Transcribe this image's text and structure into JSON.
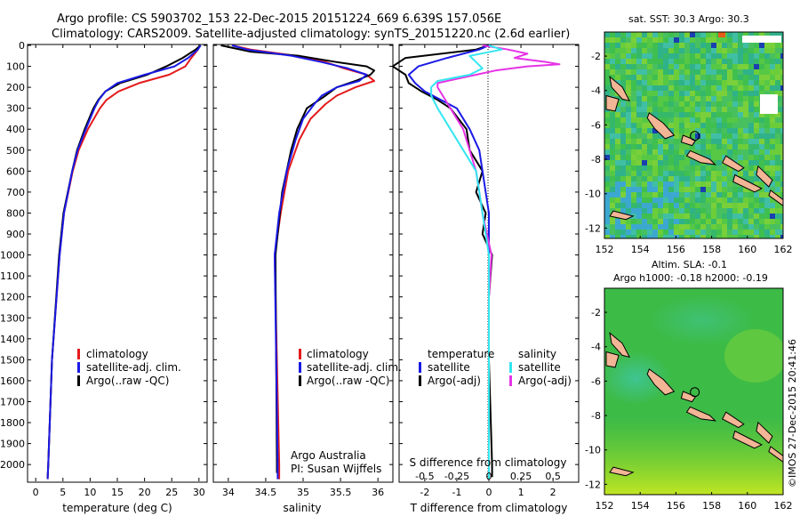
{
  "header": {
    "line1": "Argo profile: CS 5903702_153 22-Dec-2015 20151224_669 6.639S 157.056E",
    "line2": "Climatology: CARS2009. Satellite-adjusted climatology: synTS_20151220.nc (2.6d earlier)"
  },
  "colors": {
    "climatology": "#e41a1c",
    "satellite": "#1a1ae6",
    "argo": "#000000",
    "sal_satellite": "#33e6f0",
    "sal_argo": "#e633e6"
  },
  "depth_ticks": [
    "0",
    "100",
    "200",
    "300",
    "400",
    "500",
    "600",
    "700",
    "800",
    "900",
    "1000",
    "1100",
    "1200",
    "1300",
    "1400",
    "1500",
    "1600",
    "1700",
    "1800",
    "1900",
    "2000"
  ],
  "chart_data": [
    {
      "type": "line",
      "xlabel": "temperature (deg C)",
      "xticks": [
        "0",
        "5",
        "10",
        "15",
        "20",
        "25",
        "30"
      ],
      "xlim": [
        -1.5,
        31.5
      ],
      "ylim": [
        2080,
        0
      ],
      "legend": [
        "climatology",
        "satellite-adj. clim.",
        "Argo(..raw -QC)"
      ],
      "series": [
        {
          "name": "climatology",
          "depth": [
            0,
            20,
            60,
            100,
            140,
            180,
            220,
            260,
            300,
            400,
            500,
            600,
            800,
            1000,
            1500,
            2000,
            2070
          ],
          "values": [
            30.2,
            29.8,
            28.6,
            27.5,
            24.5,
            19.0,
            15.2,
            13.0,
            11.8,
            9.6,
            7.9,
            6.8,
            5.2,
            4.4,
            3.0,
            2.3,
            2.2
          ]
        },
        {
          "name": "satellite-adj. clim.",
          "depth": [
            0,
            20,
            60,
            100,
            140,
            180,
            220,
            260,
            300,
            400,
            500,
            600,
            800,
            1000,
            1500,
            2000,
            2070
          ],
          "values": [
            30.3,
            29.8,
            28.0,
            25.5,
            20.0,
            15.0,
            12.8,
            11.6,
            10.8,
            9.2,
            7.7,
            6.7,
            5.2,
            4.4,
            3.0,
            2.3,
            2.2
          ]
        },
        {
          "name": "Argo(..raw -QC)",
          "depth": [
            0,
            20,
            60,
            100,
            140,
            180,
            220,
            260,
            300,
            400,
            500,
            600,
            800,
            1000,
            1500,
            2000,
            2060
          ],
          "values": [
            30.3,
            29.4,
            27.0,
            24.0,
            20.5,
            15.5,
            12.8,
            11.5,
            10.6,
            9.0,
            7.6,
            6.7,
            5.1,
            4.3,
            3.0,
            2.3,
            2.2
          ]
        }
      ]
    },
    {
      "type": "line",
      "xlabel": "salinity",
      "xticks": [
        "34",
        "34.5",
        "35",
        "35.5",
        "36"
      ],
      "xlim": [
        33.8,
        36.2
      ],
      "ylim": [
        2080,
        0
      ],
      "legend": [
        "climatology",
        "satellite-adj. clim.",
        "Argo(..raw -QC)"
      ],
      "credit": [
        "Argo Australia",
        "PI: Susan Wijffels"
      ],
      "series": [
        {
          "name": "climatology",
          "depth": [
            0,
            20,
            50,
            80,
            110,
            140,
            170,
            200,
            240,
            280,
            350,
            450,
            600,
            800,
            1000,
            1500,
            2000,
            2070
          ],
          "values": [
            34.05,
            34.3,
            34.9,
            35.3,
            35.55,
            35.85,
            35.95,
            35.7,
            35.45,
            35.3,
            35.1,
            34.95,
            34.8,
            34.7,
            34.62,
            34.65,
            34.68,
            34.68
          ]
        },
        {
          "name": "satellite-adj. clim.",
          "depth": [
            0,
            20,
            50,
            80,
            110,
            140,
            170,
            200,
            240,
            280,
            350,
            450,
            600,
            800,
            1000,
            1500,
            2000,
            2070
          ],
          "values": [
            34.05,
            34.25,
            34.85,
            35.25,
            35.6,
            35.85,
            35.75,
            35.45,
            35.25,
            35.15,
            35.0,
            34.9,
            34.78,
            34.68,
            34.62,
            34.64,
            34.66,
            34.66
          ]
        },
        {
          "name": "Argo(..raw -QC)",
          "depth": [
            0,
            30,
            50,
            80,
            100,
            120,
            140,
            170,
            200,
            240,
            300,
            400,
            500,
            700,
            1000,
            1500,
            2000,
            2040
          ],
          "values": [
            33.9,
            34.3,
            34.95,
            35.45,
            35.85,
            35.95,
            35.9,
            35.7,
            35.45,
            35.3,
            35.05,
            34.92,
            34.84,
            34.72,
            34.63,
            34.64,
            34.65,
            34.65
          ]
        }
      ]
    },
    {
      "type": "line",
      "xlabel": "T difference from climatology",
      "xticks": [
        "-2",
        "-1",
        "0",
        "1",
        "2"
      ],
      "top_xlabel": "S difference from climatology",
      "top_xticks": [
        "-0.5",
        "-0.25",
        "0",
        "0.25",
        "0.5"
      ],
      "xlim": [
        -2.8,
        2.8
      ],
      "ylim": [
        2080,
        0
      ],
      "legend_temperature": [
        "temperature",
        "satellite",
        "Argo(-adj)"
      ],
      "legend_salinity": [
        "salinity",
        "satellite",
        "Argo(-adj)"
      ],
      "series": [
        {
          "name": "satellite",
          "variable": "temperature",
          "depth": [
            0,
            20,
            60,
            100,
            140,
            180,
            220,
            260,
            300,
            400,
            500,
            600,
            700,
            800,
            1000,
            1500,
            2000,
            2070
          ],
          "values": [
            0,
            -0.3,
            -1.3,
            -2.2,
            -2.5,
            -2.3,
            -2.0,
            -1.5,
            -1.0,
            -0.6,
            -0.3,
            -0.2,
            -0.1,
            0,
            0,
            0,
            0,
            0
          ]
        },
        {
          "name": "Argo(-adj)",
          "variable": "temperature",
          "depth": [
            0,
            20,
            60,
            100,
            140,
            180,
            220,
            260,
            300,
            400,
            500,
            600,
            700,
            800,
            900,
            1000,
            1200,
            1500,
            2000,
            2060
          ],
          "values": [
            0,
            -0.4,
            -2.6,
            -3.0,
            -2.6,
            -2.5,
            -2.1,
            -1.6,
            -1.2,
            -0.7,
            -0.6,
            -0.2,
            -0.4,
            -0.1,
            -0.2,
            0.1,
            0,
            0,
            0.1,
            0.1
          ]
        },
        {
          "name": "satellite",
          "variable": "salinity",
          "depth": [
            0,
            20,
            50,
            80,
            110,
            140,
            170,
            200,
            240,
            300,
            400,
            600,
            800,
            1000,
            1500,
            2000,
            2070
          ],
          "values": [
            0,
            0.1,
            -0.15,
            -0.1,
            -0.05,
            -0.15,
            -0.4,
            -0.45,
            -0.45,
            -0.4,
            -0.3,
            -0.1,
            -0.05,
            0,
            0,
            0,
            0
          ]
        },
        {
          "name": "Argo(-adj)",
          "variable": "salinity",
          "depth": [
            0,
            20,
            40,
            60,
            80,
            90,
            100,
            120,
            140,
            160,
            180,
            200,
            250,
            300,
            400,
            600,
            800,
            1000,
            1200,
            1500,
            2000,
            2070
          ],
          "values": [
            -0.05,
            0.15,
            0.3,
            0.2,
            0.45,
            0.55,
            0.3,
            0.05,
            -0.1,
            -0.25,
            -0.4,
            -0.4,
            -0.35,
            -0.3,
            -0.2,
            -0.1,
            -0.05,
            0.02,
            0,
            0,
            0,
            0
          ]
        }
      ]
    },
    {
      "type": "heatmap",
      "title": "sat. SST: 30.3 Argo: 30.3",
      "xticks": [
        "152",
        "154",
        "156",
        "158",
        "160",
        "162"
      ],
      "yticks": [
        "-2",
        "-4",
        "-6",
        "-8",
        "-10",
        "-12"
      ],
      "xlim": [
        152,
        162
      ],
      "ylim": [
        -12.6,
        -0.6
      ],
      "marker": {
        "lon": 157.056,
        "lat": -6.639
      }
    },
    {
      "type": "heatmap",
      "title": "Altim. SLA: -0.1",
      "subtitle": "Argo h1000: -0.18 h2000: -0.19",
      "xticks": [
        "152",
        "154",
        "156",
        "158",
        "160",
        "162"
      ],
      "yticks": [
        "-2",
        "-4",
        "-6",
        "-8",
        "-10",
        "-12"
      ],
      "xlim": [
        152,
        162
      ],
      "ylim": [
        -12.6,
        -0.6
      ],
      "marker": {
        "lon": 157.056,
        "lat": -6.639
      }
    }
  ],
  "footer_credit": "©IMOS 27-Dec-2015 20:41:46"
}
